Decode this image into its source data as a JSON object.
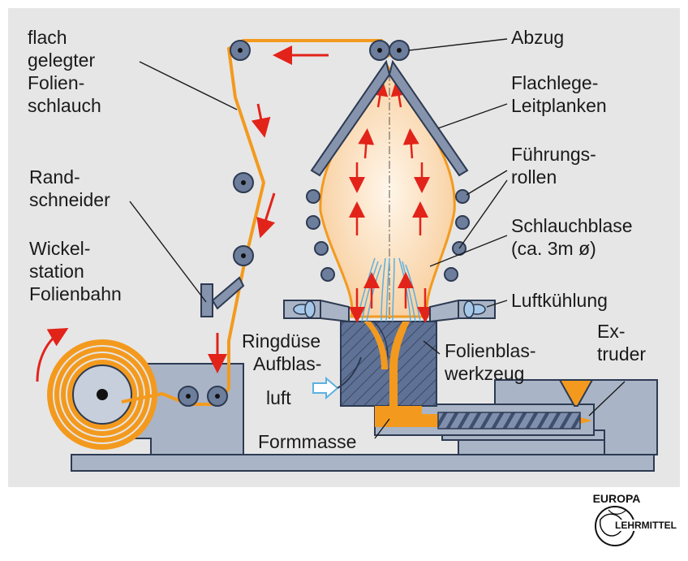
{
  "labels": {
    "flach": "flach",
    "gelegter": "gelegter",
    "folien": "Folien-",
    "schlauch": "schlauch",
    "rand": "Rand-",
    "schneider": "schneider",
    "wickel": "Wickel-",
    "station": "station",
    "folienbahn": "Folienbahn",
    "abzug": "Abzug",
    "flachlege": "Flachlege-",
    "leitplanken": "Leitplanken",
    "fuehrungs": "Führungs-",
    "rollen": "rollen",
    "schlauchblase": "Schlauchblase",
    "durchmesser": "(ca. 3m ø)",
    "luftkuehlung": "Luftkühlung",
    "ringduese": "Ringdüse",
    "aufblas": "Aufblas-",
    "luft": "luft",
    "folienblas": "Folienblas-",
    "werkzeug": "werkzeug",
    "ex": "Ex-",
    "truder": "truder",
    "formmasse": "Formmasse"
  },
  "logo": {
    "top": "EUROPA",
    "bottom": "LEHRMITTEL"
  },
  "colors": {
    "panel": "#e6e6e6",
    "film": "#f39a1e",
    "bubble": "#fce3c4",
    "machine": "#a9b4c6",
    "roller": "#6d7e9c",
    "arrow": "#e2231a",
    "fan": "#a6c8e8",
    "air_arrow": "#5bb0e0"
  }
}
